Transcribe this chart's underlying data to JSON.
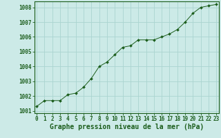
{
  "x": [
    0,
    1,
    2,
    3,
    4,
    5,
    6,
    7,
    8,
    9,
    10,
    11,
    12,
    13,
    14,
    15,
    16,
    17,
    18,
    19,
    20,
    21,
    22,
    23
  ],
  "y": [
    1001.3,
    1001.7,
    1001.7,
    1001.7,
    1002.1,
    1002.2,
    1002.6,
    1003.2,
    1004.0,
    1004.3,
    1004.8,
    1005.3,
    1005.4,
    1005.8,
    1005.8,
    1005.8,
    1006.0,
    1006.2,
    1006.5,
    1007.0,
    1007.6,
    1008.0,
    1008.1,
    1008.2
  ],
  "ylim": [
    1000.85,
    1008.4
  ],
  "yticks": [
    1001,
    1002,
    1003,
    1004,
    1005,
    1006,
    1007,
    1008
  ],
  "ytick_labels": [
    "1001",
    "1002",
    "1003",
    "1004",
    "1005",
    "1006",
    "1007",
    "1008"
  ],
  "xticks": [
    0,
    1,
    2,
    3,
    4,
    5,
    6,
    7,
    8,
    9,
    10,
    11,
    12,
    13,
    14,
    15,
    16,
    17,
    18,
    19,
    20,
    21,
    22,
    23
  ],
  "xlim": [
    -0.3,
    23.3
  ],
  "line_color": "#1a5c1a",
  "marker": "D",
  "marker_size": 2.0,
  "bg_color": "#cceae7",
  "grid_color": "#aad4d0",
  "xlabel": "Graphe pression niveau de la mer (hPa)",
  "xlabel_fontsize": 7.0,
  "tick_fontsize": 5.5,
  "tick_color": "#1a5c1a",
  "spine_color": "#1a5c1a"
}
